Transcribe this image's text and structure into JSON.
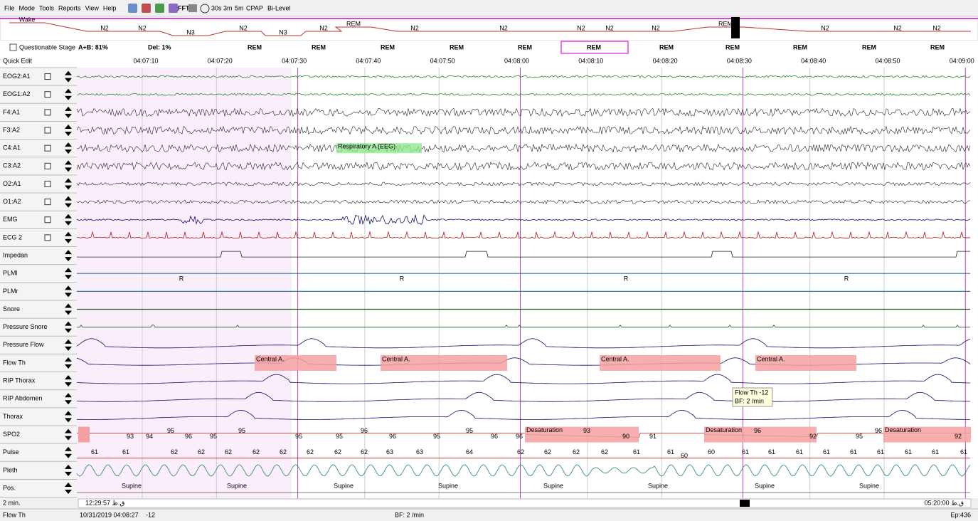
{
  "menu": [
    "File",
    "Mode",
    "Tools",
    "Reports",
    "View",
    "Help"
  ],
  "toolbar": [
    "FFT",
    "30s",
    "3m",
    "5m",
    "CPAP",
    "Bi-Level"
  ],
  "hypnogram": {
    "stages": [
      "Wake",
      "N2",
      "N2",
      "N3",
      "N2",
      "N3",
      "N2",
      "REM",
      "N2",
      "N2",
      "N2",
      "N2",
      "N2",
      "REM",
      "N2",
      "N2",
      "N2"
    ]
  },
  "header": {
    "questionable_stage": "Questionable Stage",
    "ab": "A+B: 81%",
    "del": "Del: 1%",
    "epochs": [
      "REM",
      "REM",
      "REM",
      "REM",
      "REM",
      "REM",
      "REM",
      "REM",
      "REM",
      "REM",
      "REM"
    ]
  },
  "quick_edit": "Quick Edit",
  "times": [
    "04:07:10",
    "04:07:20",
    "04:07:30",
    "04:07:40",
    "04:07:50",
    "04:08:00",
    "04:08:10",
    "04:08:20",
    "04:08:30",
    "04:08:40",
    "04:08:50",
    "04:09:00"
  ],
  "channels": [
    "EOG2:A1",
    "EOG1:A2",
    "F4:A1",
    "F3:A2",
    "C4:A1",
    "C3:A2",
    "O2:A1",
    "O1:A2",
    "EMG",
    "ECG 2",
    "Impedan",
    "PLMl",
    "PLMr",
    "Snore",
    "Pressure Snore",
    "Pressure Flow",
    "Flow Th",
    "RIP Thorax",
    "RIP Abdomen",
    "Thorax",
    "SPO2",
    "Pulse",
    "Pleth",
    "Pos."
  ],
  "annotations": {
    "respiratory": "Respiratory A (EEG)",
    "central": [
      "Central A.",
      "Central A.",
      "Central A.",
      "Central A."
    ],
    "desaturation": [
      "Desaturation",
      "Desaturation",
      "Desaturation"
    ],
    "stage_marks": [
      "R",
      "R",
      "R",
      "R"
    ]
  },
  "spo2": [
    93,
    94,
    95,
    96,
    95,
    95,
    95,
    95,
    96,
    96,
    95,
    95,
    96,
    96,
    93,
    90,
    91,
    96,
    92,
    95,
    96,
    92
  ],
  "pulse": [
    61,
    61,
    62,
    62,
    62,
    62,
    62,
    62,
    62,
    62,
    63,
    63,
    64,
    62,
    62,
    62,
    62,
    61,
    61,
    60,
    60,
    61,
    61,
    61,
    61,
    61,
    61,
    61,
    61,
    61
  ],
  "position": [
    "Supine",
    "Supine",
    "Supine",
    "Supine",
    "Supine",
    "Supine",
    "Supine",
    "Supine"
  ],
  "tooltip": {
    "line1": "Flow Th -12",
    "line2": "BF: 2 /min"
  },
  "status": {
    "span": "2 min.",
    "start": "12:29:57 ق.ظ",
    "end": "05:20:00 ق.ظ",
    "channel": "Flow Th",
    "datetime": "10/31/2019 04:08:27",
    "value": "-12",
    "bf": "BF: 2 /min",
    "epoch": "Ep:436"
  }
}
